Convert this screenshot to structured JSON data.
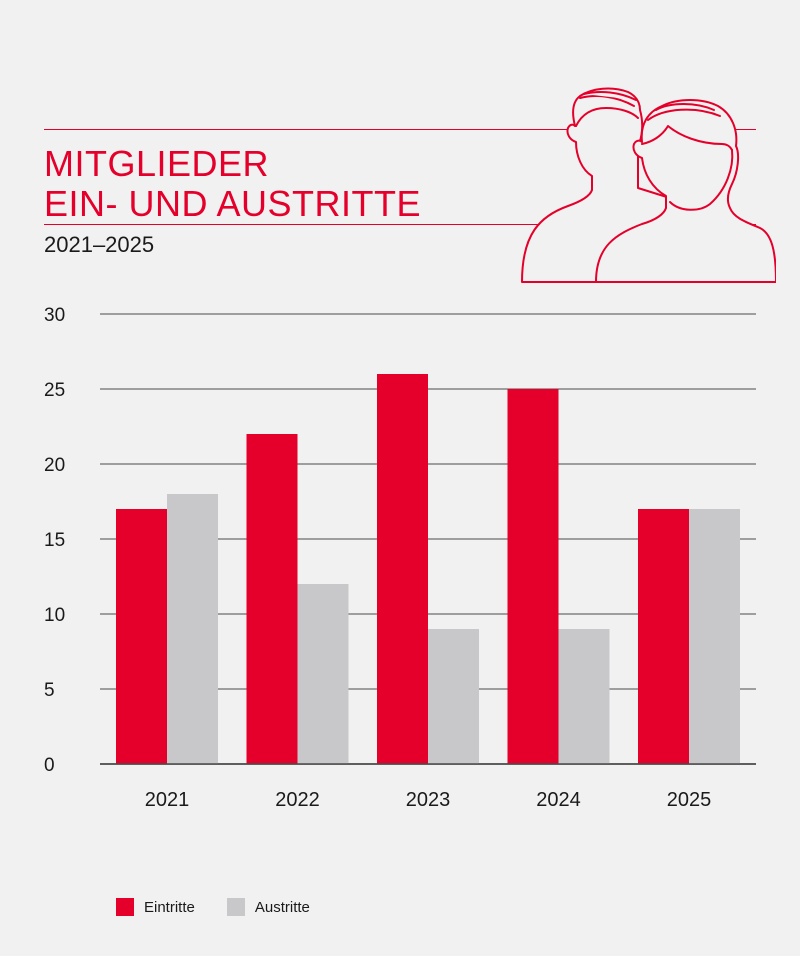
{
  "title": {
    "line1": "MITGLIEDER",
    "line2": "EIN- UND AUSTRITTE"
  },
  "subtitle": "2021–2025",
  "icon": "people-icon",
  "colors": {
    "accent": "#e4002b",
    "entries": "#e4002b",
    "exits": "#c8c7ca",
    "background": "#f2f1f1",
    "gridline": "#4a4a4a"
  },
  "chart_data": {
    "type": "bar",
    "categories": [
      "2021",
      "2022",
      "2023",
      "2024",
      "2025"
    ],
    "series": [
      {
        "name": "Eintritte",
        "values": [
          17,
          22,
          26,
          25,
          17
        ]
      },
      {
        "name": "Austritte",
        "values": [
          18,
          12,
          9,
          9,
          17
        ]
      }
    ],
    "yticks": [
      "0",
      "5",
      "10",
      "15",
      "20",
      "25",
      "30"
    ],
    "ylim": [
      0,
      30
    ],
    "grid": true,
    "legend_position": "bottom-left"
  }
}
